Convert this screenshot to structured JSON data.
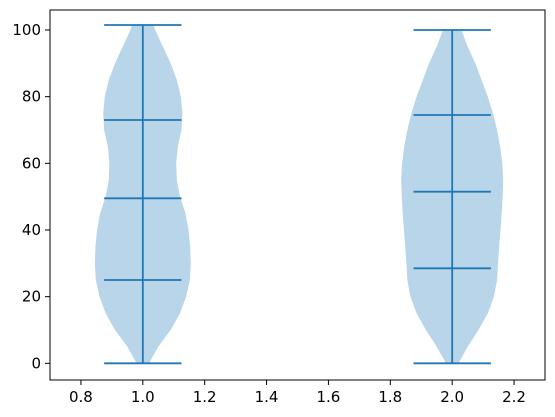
{
  "chart_data": {
    "type": "violin",
    "title": "",
    "xlabel": "",
    "ylabel": "",
    "xlim": [
      0.7,
      2.3
    ],
    "ylim": [
      -5,
      106
    ],
    "x_ticks": [
      "0.8",
      "1.0",
      "1.2",
      "1.4",
      "1.6",
      "1.8",
      "2.0",
      "2.2"
    ],
    "y_ticks": [
      "0",
      "20",
      "40",
      "60",
      "80",
      "100"
    ],
    "violins": [
      {
        "position": 1.0,
        "min": 0,
        "q1": 25,
        "median": 49.5,
        "q3": 73,
        "max": 101.5,
        "profile": [
          [
            0,
            0.02
          ],
          [
            5,
            0.05
          ],
          [
            10,
            0.09
          ],
          [
            15,
            0.12
          ],
          [
            20,
            0.14
          ],
          [
            25,
            0.152
          ],
          [
            30,
            0.155
          ],
          [
            35,
            0.153
          ],
          [
            40,
            0.148
          ],
          [
            45,
            0.138
          ],
          [
            50,
            0.12
          ],
          [
            55,
            0.11
          ],
          [
            60,
            0.108
          ],
          [
            65,
            0.113
          ],
          [
            70,
            0.125
          ],
          [
            75,
            0.128
          ],
          [
            80,
            0.123
          ],
          [
            85,
            0.11
          ],
          [
            90,
            0.09
          ],
          [
            95,
            0.065
          ],
          [
            100,
            0.04
          ],
          [
            101.5,
            0.035
          ]
        ]
      },
      {
        "position": 2.0,
        "min": 0,
        "q1": 28.5,
        "median": 51.5,
        "q3": 74.5,
        "max": 100,
        "profile": [
          [
            0,
            0.02
          ],
          [
            5,
            0.05
          ],
          [
            10,
            0.085
          ],
          [
            15,
            0.115
          ],
          [
            20,
            0.135
          ],
          [
            25,
            0.145
          ],
          [
            30,
            0.148
          ],
          [
            35,
            0.152
          ],
          [
            40,
            0.156
          ],
          [
            45,
            0.16
          ],
          [
            50,
            0.163
          ],
          [
            55,
            0.165
          ],
          [
            60,
            0.162
          ],
          [
            65,
            0.155
          ],
          [
            70,
            0.145
          ],
          [
            75,
            0.132
          ],
          [
            80,
            0.115
          ],
          [
            85,
            0.095
          ],
          [
            90,
            0.075
          ],
          [
            95,
            0.05
          ],
          [
            100,
            0.03
          ]
        ]
      }
    ],
    "cap_half_width": 0.125,
    "colors": {
      "fill": "#b9d5ea",
      "line": "#1f77b4",
      "axis": "#000000"
    }
  }
}
